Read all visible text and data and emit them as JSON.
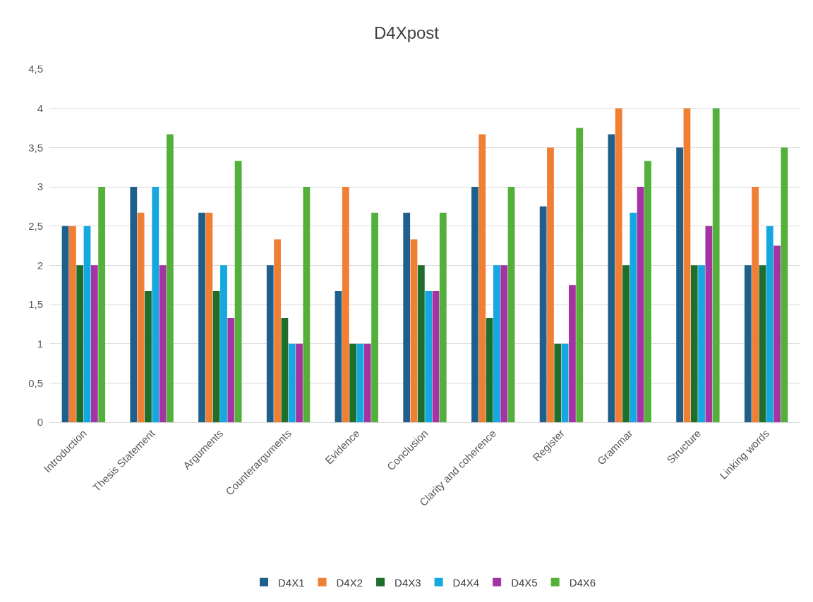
{
  "chart_data": {
    "type": "bar",
    "title": "D4Xpost",
    "categories": [
      "Introduction",
      "Thesis Statement",
      "Arguments",
      "Counterarguments",
      "Evidence",
      "Conclusion",
      "Clarity and coherence",
      "Register",
      "Grammar",
      "Structure",
      "Linking words"
    ],
    "series": [
      {
        "name": "D4X1",
        "color": "#1f5f8b",
        "values": [
          2.5,
          3,
          2.67,
          2,
          1.67,
          2.67,
          3,
          2.75,
          3.67,
          3.5,
          2
        ]
      },
      {
        "name": "D4X2",
        "color": "#f07f34",
        "values": [
          2.5,
          2.67,
          2.67,
          2.33,
          3,
          2.33,
          3.67,
          3.5,
          4,
          4,
          3
        ]
      },
      {
        "name": "D4X3",
        "color": "#1e6f2e",
        "values": [
          2,
          1.67,
          1.67,
          1.33,
          1,
          2,
          1.33,
          1,
          2,
          2,
          2
        ]
      },
      {
        "name": "D4X4",
        "color": "#14a7e0",
        "values": [
          2.5,
          3,
          2,
          1,
          1,
          1.67,
          2,
          1,
          2.67,
          2,
          2.5
        ]
      },
      {
        "name": "D4X5",
        "color": "#a434a4",
        "values": [
          2,
          2,
          1.33,
          1,
          1,
          1.67,
          2,
          1.75,
          3,
          2.5,
          2.25
        ]
      },
      {
        "name": "D4X6",
        "color": "#53b03a",
        "values": [
          3,
          3.67,
          3.33,
          3,
          2.67,
          2.67,
          3,
          3.75,
          3.33,
          4,
          3.5
        ]
      }
    ],
    "ylim": [
      0,
      4.5
    ],
    "yticks": [
      0,
      {
        "value": 0.5,
        "label": "0,5"
      },
      1,
      {
        "value": 1.5,
        "label": "1,5"
      },
      2,
      {
        "value": 2.5,
        "label": "2,5"
      },
      3,
      {
        "value": 3.5,
        "label": "3,5"
      },
      4,
      {
        "value": 4.5,
        "label": "4,5"
      }
    ],
    "grid": "y",
    "legend": "bottom"
  }
}
